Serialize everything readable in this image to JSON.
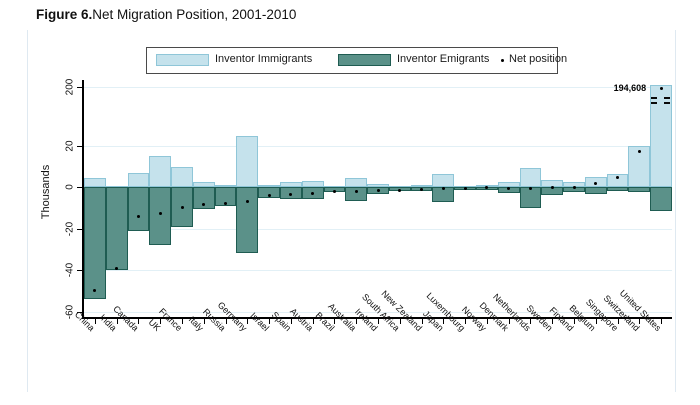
{
  "page": {
    "title_prefix": "Figure 6.",
    "title_rest": "Net Migration Position, 2001-2010"
  },
  "legend": {
    "immigrants_label": "Inventor Immigrants",
    "emigrants_label": "Inventor Emigrants",
    "net_label": "Net position"
  },
  "colors": {
    "immigrants_fill": "#c5e2ec",
    "immigrants_border": "#8fc6d8",
    "emigrants_fill": "#5b9189",
    "emigrants_border": "#1f5c52",
    "zero_line": "#1f5c52",
    "gridline": "#e2f0f6",
    "axis": "#000000",
    "dot": "#000000"
  },
  "chart_data": {
    "type": "bar",
    "title": "Figure 6. Net Migration Position, 2001-2010",
    "ylabel": "Thousands",
    "xlabel": "",
    "units": "thousands of inventors",
    "grid": true,
    "legend_position": "top-center",
    "y_ticks": [
      200,
      20,
      0,
      -20,
      -40,
      -60
    ],
    "y_tick_labels": [
      "200",
      "20",
      "0",
      "-20",
      "-40",
      "-60"
    ],
    "y_axis_break": true,
    "y_axis_break_between": [
      25,
      200
    ],
    "annotation": {
      "text": "194,608",
      "country": "United States"
    },
    "categories": [
      "China",
      "India",
      "Canada",
      "UK",
      "France",
      "Italy",
      "Russia",
      "Germany",
      "Israel",
      "Spain",
      "Austria",
      "Brazil",
      "Australia",
      "Ireland",
      "South Africa",
      "New Zealand",
      "Japan",
      "Luxembourg",
      "Norway",
      "Denmark",
      "Netherlands",
      "Sweden",
      "Finland",
      "Belgium",
      "Singapore",
      "Switzerland",
      "United States"
    ],
    "series": [
      {
        "name": "Inventor Immigrants",
        "type": "bar",
        "values": [
          4.2,
          0.7,
          6.6,
          15.2,
          9.6,
          2.4,
          0.8,
          24.8,
          1.2,
          2.4,
          2.9,
          0.4,
          4.3,
          1.6,
          0.4,
          0.9,
          6.5,
          0.6,
          0.9,
          2.3,
          9.2,
          3.4,
          2.2,
          5.0,
          6.4,
          19.6,
          206.1
        ]
      },
      {
        "name": "Inventor Emigrants",
        "type": "bar",
        "values": [
          -54.0,
          -40.0,
          -21.0,
          -28.0,
          -19.4,
          -10.6,
          -8.9,
          -32.0,
          -5.4,
          -5.8,
          -5.8,
          -2.6,
          -6.5,
          -3.2,
          -1.9,
          -2.1,
          -7.4,
          -1.3,
          -1.2,
          -2.8,
          -10.0,
          -3.6,
          -2.5,
          -3.3,
          -1.8,
          -2.6,
          -11.5
        ]
      },
      {
        "name": "Net position",
        "type": "point",
        "values": [
          -49.8,
          -39.3,
          -14.4,
          -12.8,
          -9.8,
          -8.2,
          -8.1,
          -7.2,
          -4.2,
          -3.4,
          -2.9,
          -2.2,
          -2.2,
          -1.6,
          -1.5,
          -1.2,
          -0.9,
          -0.7,
          -0.3,
          -0.5,
          -0.8,
          -0.2,
          -0.3,
          1.7,
          4.6,
          17.0,
          194.6
        ]
      }
    ]
  }
}
